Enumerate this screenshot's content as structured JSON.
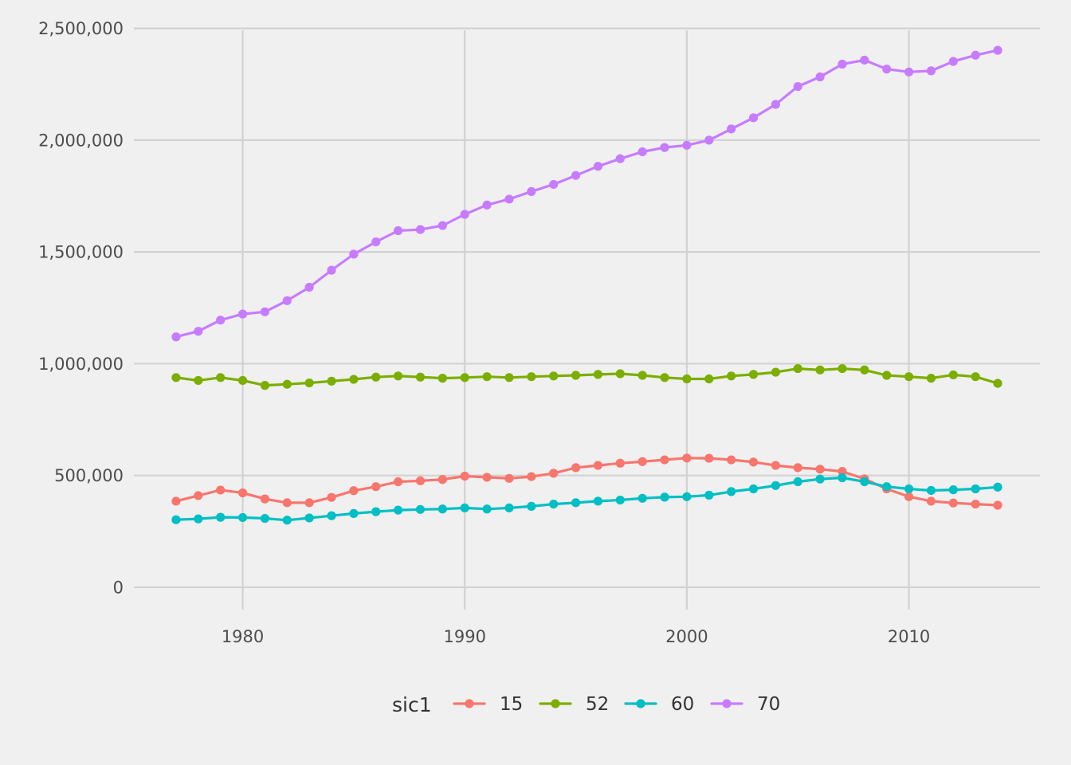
{
  "chart_data": {
    "type": "line",
    "title": "",
    "xlabel": "",
    "ylabel": "",
    "xlim": [
      1975.1,
      2015.9
    ],
    "ylim": [
      -100000,
      2520000
    ],
    "x_ticks": [
      1980,
      1990,
      2000,
      2010
    ],
    "y_ticks": [
      0,
      500000,
      1000000,
      1500000,
      2000000,
      2500000
    ],
    "y_tick_labels": [
      "0",
      "500,000",
      "1,000,000",
      "1,500,000",
      "2,000,000",
      "2,500,000"
    ],
    "grid": true,
    "legend": {
      "title": "sic1",
      "position": "bottom"
    },
    "x": [
      1977,
      1978,
      1979,
      1980,
      1981,
      1982,
      1983,
      1984,
      1985,
      1986,
      1987,
      1988,
      1989,
      1990,
      1991,
      1992,
      1993,
      1994,
      1995,
      1996,
      1997,
      1998,
      1999,
      2000,
      2001,
      2002,
      2003,
      2004,
      2005,
      2006,
      2007,
      2008,
      2009,
      2010,
      2011,
      2012,
      2013,
      2014
    ],
    "series": [
      {
        "name": "15",
        "color": "#F8766D",
        "values": [
          385000,
          410000,
          435000,
          422000,
          395000,
          378000,
          378000,
          402000,
          432000,
          450000,
          472000,
          476000,
          482000,
          497000,
          492000,
          487000,
          495000,
          510000,
          535000,
          545000,
          555000,
          562000,
          570000,
          578000,
          577000,
          570000,
          560000,
          545000,
          535000,
          528000,
          518000,
          485000,
          440000,
          405000,
          385000,
          377000,
          372000,
          367000
        ]
      },
      {
        "name": "52",
        "color": "#7CAE00",
        "values": [
          938000,
          925000,
          938000,
          925000,
          903000,
          908000,
          914000,
          922000,
          930000,
          940000,
          945000,
          940000,
          935000,
          938000,
          942000,
          938000,
          942000,
          945000,
          948000,
          952000,
          955000,
          948000,
          938000,
          932000,
          932000,
          945000,
          952000,
          962000,
          978000,
          972000,
          978000,
          972000,
          948000,
          942000,
          935000,
          950000,
          942000,
          912000
        ]
      },
      {
        "name": "60",
        "color": "#00BFC4",
        "values": [
          302000,
          306000,
          313000,
          312000,
          308000,
          300000,
          310000,
          320000,
          330000,
          338000,
          345000,
          348000,
          350000,
          355000,
          350000,
          355000,
          362000,
          372000,
          378000,
          385000,
          390000,
          398000,
          403000,
          405000,
          412000,
          428000,
          440000,
          455000,
          472000,
          484000,
          490000,
          472000,
          450000,
          440000,
          433000,
          436000,
          440000,
          448000
        ]
      },
      {
        "name": "70",
        "color": "#C77CFF",
        "values": [
          1120000,
          1145000,
          1195000,
          1222000,
          1232000,
          1282000,
          1342000,
          1418000,
          1490000,
          1545000,
          1595000,
          1600000,
          1618000,
          1668000,
          1710000,
          1736000,
          1770000,
          1802000,
          1842000,
          1883000,
          1917000,
          1948000,
          1967000,
          1977000,
          2000000,
          2050000,
          2100000,
          2160000,
          2240000,
          2283000,
          2340000,
          2358000,
          2318000,
          2305000,
          2310000,
          2352000,
          2380000,
          2402000
        ]
      }
    ]
  }
}
